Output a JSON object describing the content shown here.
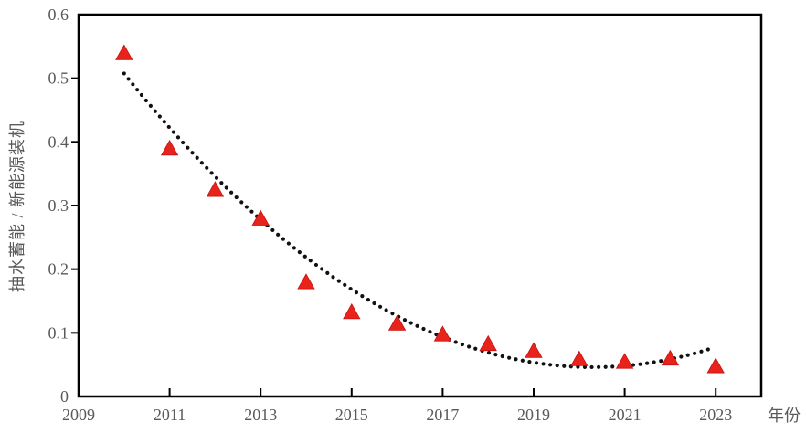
{
  "page": {
    "background": "#ffffff"
  },
  "chart_data": {
    "type": "scatter",
    "title": "",
    "xlabel": "年份",
    "ylabel": "抽水蓄能 / 新能源装机",
    "xlim": [
      2009,
      2024
    ],
    "ylim": [
      0,
      0.6
    ],
    "grid": false,
    "legend": "none",
    "x_tick_values": [
      2009,
      2011,
      2013,
      2015,
      2017,
      2019,
      2021,
      2023
    ],
    "x_tick_labels": [
      "2009",
      "2011",
      "2013",
      "2015",
      "2017",
      "2019",
      "2021",
      "2023"
    ],
    "y_tick_values": [
      0,
      0.1,
      0.2,
      0.3,
      0.4,
      0.5,
      0.6
    ],
    "y_tick_labels": [
      "0",
      "0.1",
      "0.2",
      "0.3",
      "0.4",
      "0.5",
      "0.6"
    ],
    "series": [
      {
        "marker": "triangle",
        "color": "#e8231c",
        "x": [
          2010,
          2011,
          2012,
          2013,
          2014,
          2015,
          2016,
          2017,
          2018,
          2019,
          2020,
          2021,
          2022,
          2023
        ],
        "y": [
          0.54,
          0.39,
          0.325,
          0.28,
          0.18,
          0.133,
          0.115,
          0.098,
          0.083,
          0.072,
          0.059,
          0.055,
          0.06,
          0.048
        ]
      }
    ],
    "trend_line": {
      "type": "quadratic",
      "style": "dotted",
      "color": "#111111",
      "a": 0.00435,
      "vertex_x": 2020.3,
      "vertex_y": 0.046,
      "x_start": 2010.0,
      "x_end": 2022.95
    }
  },
  "style": {
    "frame_color": "#000000",
    "tick_color": "#000000",
    "tick_label_color": "#595959"
  }
}
